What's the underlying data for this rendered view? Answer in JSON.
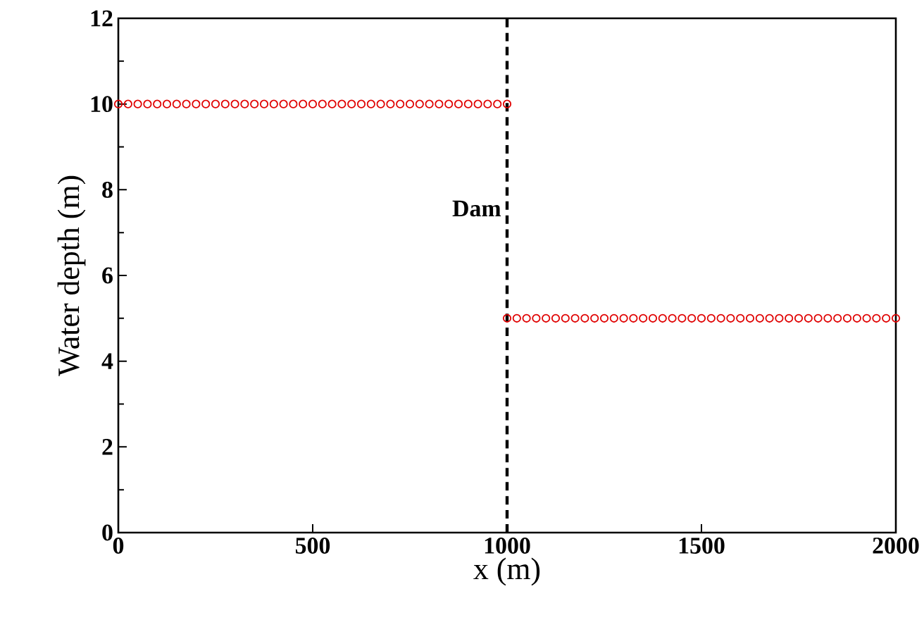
{
  "chart_data": {
    "type": "scatter",
    "xlabel": "x (m)",
    "ylabel": "Water depth (m)",
    "xlim": [
      0,
      2000
    ],
    "ylim": [
      0,
      12
    ],
    "xticks": [
      0,
      500,
      1000,
      1500,
      2000
    ],
    "yticks": [
      0,
      2,
      4,
      6,
      8,
      10,
      12
    ],
    "marker": "circle",
    "series": [
      {
        "color": "#e00000",
        "x": [
          0,
          25,
          50,
          75,
          100,
          125,
          150,
          175,
          200,
          225,
          250,
          275,
          300,
          325,
          350,
          375,
          400,
          425,
          450,
          475,
          500,
          525,
          550,
          575,
          600,
          625,
          650,
          675,
          700,
          725,
          750,
          775,
          800,
          825,
          850,
          875,
          900,
          925,
          950,
          975,
          1000
        ],
        "values": [
          10,
          10,
          10,
          10,
          10,
          10,
          10,
          10,
          10,
          10,
          10,
          10,
          10,
          10,
          10,
          10,
          10,
          10,
          10,
          10,
          10,
          10,
          10,
          10,
          10,
          10,
          10,
          10,
          10,
          10,
          10,
          10,
          10,
          10,
          10,
          10,
          10,
          10,
          10,
          10,
          10
        ]
      },
      {
        "color": "#e00000",
        "x": [
          1000,
          1025,
          1050,
          1075,
          1100,
          1125,
          1150,
          1175,
          1200,
          1225,
          1250,
          1275,
          1300,
          1325,
          1350,
          1375,
          1400,
          1425,
          1450,
          1475,
          1500,
          1525,
          1550,
          1575,
          1600,
          1625,
          1650,
          1675,
          1700,
          1725,
          1750,
          1775,
          1800,
          1825,
          1850,
          1875,
          1900,
          1925,
          1950,
          1975,
          2000
        ],
        "values": [
          5,
          5,
          5,
          5,
          5,
          5,
          5,
          5,
          5,
          5,
          5,
          5,
          5,
          5,
          5,
          5,
          5,
          5,
          5,
          5,
          5,
          5,
          5,
          5,
          5,
          5,
          5,
          5,
          5,
          5,
          5,
          5,
          5,
          5,
          5,
          5,
          5,
          5,
          5,
          5,
          5
        ]
      }
    ],
    "ref_lines": [
      {
        "axis": "x",
        "value": 1000,
        "label": "Dam",
        "color": "#000000",
        "line_style": "dashed"
      }
    ]
  }
}
